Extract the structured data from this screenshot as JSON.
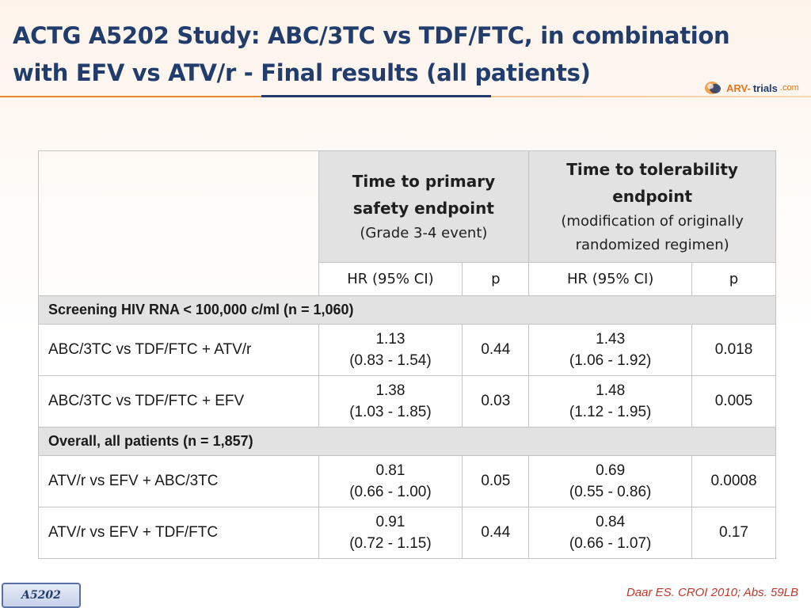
{
  "slide": {
    "title_line1": "ACTG A5202 Study: ABC/3TC vs TDF/FTC, in combination",
    "title_line2": "with EFV vs ATV/r - Final results (all patients)",
    "logo": {
      "part_a": "ARV-",
      "part_b": "trials",
      "part_c": ".com",
      "icon": "arv-trials-logo-icon"
    },
    "accent_colors": {
      "title": "#213d6e",
      "orange_rule": "#e8892e",
      "citation": "#c0392b"
    }
  },
  "table": {
    "group_headers": [
      {
        "main": "Time to primary safety endpoint",
        "sub": "(Grade 3-4 event)"
      },
      {
        "main": "Time to tolerability endpoint",
        "sub": "(modification of originally randomized regimen)"
      }
    ],
    "sub_headers": [
      "HR (95% CI)",
      "p",
      "HR (95% CI)",
      "p"
    ],
    "sections": [
      {
        "title": "Screening HIV RNA < 100,000 c/ml (n = 1,060)",
        "rows": [
          {
            "label": "ABC/3TC vs TDF/FTC + ATV/r",
            "hr1": "1.13",
            "ci1": "(0.83 - 1.54)",
            "p1": "0.44",
            "hr2": "1.43",
            "ci2": "(1.06 - 1.92)",
            "p2": "0.018"
          },
          {
            "label": "ABC/3TC vs TDF/FTC + EFV",
            "hr1": "1.38",
            "ci1": "(1.03 - 1.85)",
            "p1": "0.03",
            "hr2": "1.48",
            "ci2": "(1.12 - 1.95)",
            "p2": "0.005"
          }
        ]
      },
      {
        "title": "Overall, all patients (n = 1,857)",
        "rows": [
          {
            "label": "ATV/r vs EFV + ABC/3TC",
            "hr1": "0.81",
            "ci1": "(0.66 - 1.00)",
            "p1": "0.05",
            "hr2": "0.69",
            "ci2": "(0.55 - 0.86)",
            "p2": "0.0008"
          },
          {
            "label": "ATV/r vs EFV + TDF/FTC",
            "hr1": "0.91",
            "ci1": "(0.72 - 1.15)",
            "p1": "0.44",
            "hr2": "0.84",
            "ci2": "(0.66 - 1.07)",
            "p2": "0.17"
          }
        ]
      }
    ]
  },
  "footer": {
    "badge": "A5202",
    "citation": "Daar ES. CROI 2010; Abs. 59LB"
  }
}
